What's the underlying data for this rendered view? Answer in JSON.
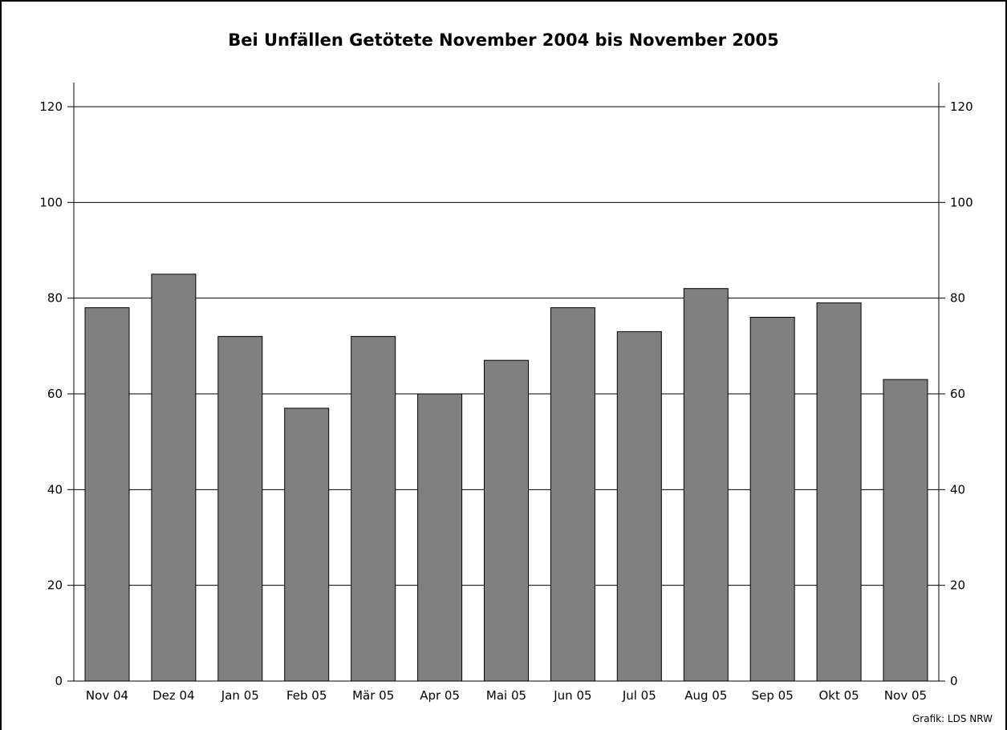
{
  "chart_data": {
    "type": "bar",
    "title": "Bei Unfällen Getötete November 2004 bis November 2005",
    "categories": [
      "Nov 04",
      "Dez 04",
      "Jan 05",
      "Feb 05",
      "Mär 05",
      "Apr 05",
      "Mai 05",
      "Jun 05",
      "Jul 05",
      "Aug 05",
      "Sep 05",
      "Okt 05",
      "Nov 05"
    ],
    "values": [
      78,
      85,
      72,
      57,
      72,
      60,
      67,
      78,
      73,
      82,
      76,
      79,
      63
    ],
    "ylim": [
      0,
      120
    ],
    "yticks": [
      0,
      20,
      40,
      60,
      80,
      100,
      120
    ],
    "grid": true,
    "bar_color": "#808080",
    "source": "Grafik: LDS NRW"
  }
}
